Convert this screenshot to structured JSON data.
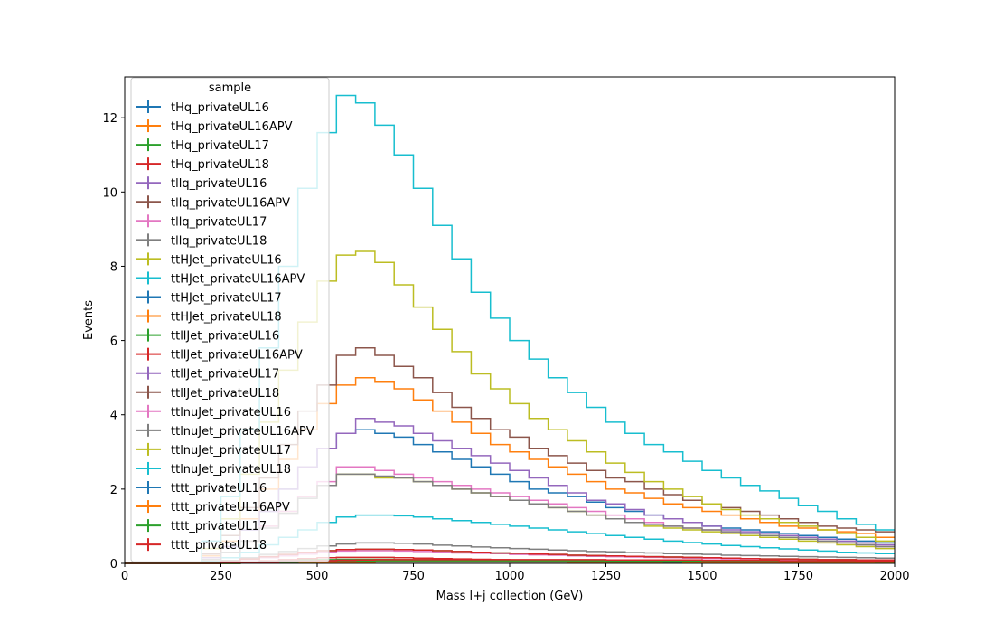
{
  "chart_data": {
    "type": "line",
    "drawstyle": "steps-mid",
    "xlabel": "Mass l+j collection (GeV)",
    "ylabel": "Events",
    "xlim": [
      0,
      2000
    ],
    "ylim": [
      0,
      13.1
    ],
    "x_ticks": [
      0,
      250,
      500,
      750,
      1000,
      1250,
      1500,
      1750,
      2000
    ],
    "y_ticks": [
      0,
      2,
      4,
      6,
      8,
      10,
      12
    ],
    "grid": false,
    "legend": {
      "title": "sample",
      "placement": "upper-left"
    },
    "x": [
      25,
      75,
      125,
      175,
      225,
      275,
      325,
      375,
      425,
      475,
      525,
      575,
      625,
      675,
      725,
      775,
      825,
      875,
      925,
      975,
      1025,
      1075,
      1125,
      1175,
      1225,
      1275,
      1325,
      1375,
      1425,
      1475,
      1525,
      1575,
      1625,
      1675,
      1725,
      1775,
      1825,
      1875,
      1925,
      1975
    ],
    "series": [
      {
        "name": "tHq_privateUL16",
        "color": "#1f77b4",
        "values": [
          0,
          0,
          0,
          0,
          0,
          0.01,
          0.02,
          0.03,
          0.04,
          0.05,
          0.06,
          0.07,
          0.07,
          0.07,
          0.07,
          0.06,
          0.06,
          0.05,
          0.05,
          0.05,
          0.04,
          0.04,
          0.04,
          0.03,
          0.03,
          0.03,
          0.03,
          0.02,
          0.02,
          0.02,
          0.02,
          0.02,
          0.02,
          0.01,
          0.01,
          0.01,
          0.01,
          0.01,
          0.01,
          0.01
        ]
      },
      {
        "name": "tHq_privateUL16APV",
        "color": "#ff7f0e",
        "values": [
          0,
          0,
          0,
          0,
          0,
          0.01,
          0.02,
          0.03,
          0.04,
          0.05,
          0.06,
          0.07,
          0.07,
          0.07,
          0.07,
          0.06,
          0.06,
          0.05,
          0.05,
          0.05,
          0.04,
          0.04,
          0.04,
          0.03,
          0.03,
          0.03,
          0.03,
          0.02,
          0.02,
          0.02,
          0.02,
          0.02,
          0.02,
          0.01,
          0.01,
          0.01,
          0.01,
          0.01,
          0.01,
          0.01
        ]
      },
      {
        "name": "tHq_privateUL17",
        "color": "#2ca02c",
        "values": [
          0,
          0,
          0,
          0,
          0,
          0.01,
          0.03,
          0.05,
          0.07,
          0.09,
          0.1,
          0.11,
          0.11,
          0.11,
          0.1,
          0.1,
          0.09,
          0.08,
          0.08,
          0.07,
          0.07,
          0.06,
          0.06,
          0.05,
          0.05,
          0.04,
          0.04,
          0.04,
          0.03,
          0.03,
          0.03,
          0.03,
          0.02,
          0.02,
          0.02,
          0.02,
          0.02,
          0.02,
          0.01,
          0.01
        ]
      },
      {
        "name": "tHq_privateUL18",
        "color": "#d62728",
        "values": [
          0,
          0,
          0,
          0,
          0,
          0.02,
          0.04,
          0.07,
          0.1,
          0.13,
          0.15,
          0.16,
          0.16,
          0.16,
          0.15,
          0.14,
          0.13,
          0.12,
          0.11,
          0.1,
          0.09,
          0.09,
          0.08,
          0.07,
          0.07,
          0.06,
          0.06,
          0.05,
          0.05,
          0.05,
          0.04,
          0.04,
          0.04,
          0.03,
          0.03,
          0.03,
          0.03,
          0.02,
          0.02,
          0.02
        ]
      },
      {
        "name": "tllq_privateUL16",
        "color": "#9467bd",
        "values": [
          0,
          0,
          0,
          0,
          0.01,
          0.02,
          0.03,
          0.05,
          0.06,
          0.07,
          0.08,
          0.09,
          0.09,
          0.09,
          0.09,
          0.08,
          0.08,
          0.08,
          0.07,
          0.07,
          0.07,
          0.06,
          0.06,
          0.06,
          0.05,
          0.05,
          0.05,
          0.05,
          0.04,
          0.04,
          0.04,
          0.04,
          0.04,
          0.03,
          0.03,
          0.03,
          0.03,
          0.03,
          0.03,
          0.02
        ]
      },
      {
        "name": "tllq_privateUL16APV",
        "color": "#8c564b",
        "values": [
          0,
          0,
          0,
          0,
          0.01,
          0.02,
          0.03,
          0.05,
          0.06,
          0.07,
          0.08,
          0.09,
          0.09,
          0.09,
          0.09,
          0.08,
          0.08,
          0.08,
          0.07,
          0.07,
          0.07,
          0.06,
          0.06,
          0.06,
          0.05,
          0.05,
          0.05,
          0.05,
          0.04,
          0.04,
          0.04,
          0.04,
          0.04,
          0.03,
          0.03,
          0.03,
          0.03,
          0.03,
          0.03,
          0.02
        ]
      },
      {
        "name": "tllq_privateUL17",
        "color": "#e377c2",
        "values": [
          0,
          0,
          0,
          0,
          0.02,
          0.05,
          0.1,
          0.15,
          0.2,
          0.25,
          0.3,
          0.33,
          0.34,
          0.34,
          0.33,
          0.32,
          0.3,
          0.28,
          0.27,
          0.26,
          0.24,
          0.23,
          0.22,
          0.2,
          0.19,
          0.18,
          0.17,
          0.16,
          0.15,
          0.14,
          0.13,
          0.12,
          0.12,
          0.11,
          0.1,
          0.1,
          0.09,
          0.09,
          0.08,
          0.08
        ]
      },
      {
        "name": "tllq_privateUL18",
        "color": "#7f7f7f",
        "values": [
          0,
          0,
          0,
          0,
          0.03,
          0.08,
          0.15,
          0.24,
          0.32,
          0.4,
          0.47,
          0.52,
          0.55,
          0.55,
          0.54,
          0.52,
          0.49,
          0.47,
          0.44,
          0.42,
          0.4,
          0.38,
          0.36,
          0.34,
          0.32,
          0.31,
          0.29,
          0.28,
          0.26,
          0.25,
          0.24,
          0.22,
          0.21,
          0.2,
          0.19,
          0.18,
          0.17,
          0.16,
          0.15,
          0.14
        ]
      },
      {
        "name": "ttHJet_privateUL16",
        "color": "#bcbd22",
        "values": [
          0,
          0,
          0,
          0,
          0.1,
          0.3,
          0.6,
          1.0,
          1.4,
          1.8,
          2.1,
          2.4,
          2.4,
          2.3,
          2.3,
          2.2,
          2.1,
          2.0,
          1.9,
          1.8,
          1.7,
          1.6,
          1.5,
          1.4,
          1.3,
          1.2,
          1.1,
          1.0,
          0.95,
          0.9,
          0.85,
          0.8,
          0.75,
          0.7,
          0.65,
          0.6,
          0.55,
          0.5,
          0.45,
          0.4
        ]
      },
      {
        "name": "ttHJet_privateUL16APV",
        "color": "#17becf",
        "values": [
          0,
          0,
          0,
          0,
          0.05,
          0.15,
          0.3,
          0.5,
          0.7,
          0.9,
          1.1,
          1.25,
          1.3,
          1.3,
          1.28,
          1.25,
          1.2,
          1.15,
          1.1,
          1.05,
          1.0,
          0.95,
          0.9,
          0.85,
          0.8,
          0.75,
          0.7,
          0.65,
          0.6,
          0.56,
          0.52,
          0.48,
          0.45,
          0.42,
          0.39,
          0.36,
          0.33,
          0.3,
          0.28,
          0.26
        ]
      },
      {
        "name": "ttHJet_privateUL17",
        "color": "#1f77b4",
        "values": [
          0,
          0,
          0,
          0,
          0.15,
          0.45,
          0.9,
          1.4,
          2.0,
          2.6,
          3.1,
          3.5,
          3.6,
          3.5,
          3.4,
          3.2,
          3.0,
          2.8,
          2.6,
          2.4,
          2.2,
          2.0,
          1.9,
          1.8,
          1.65,
          1.5,
          1.4,
          1.3,
          1.2,
          1.1,
          1.0,
          0.95,
          0.9,
          0.85,
          0.8,
          0.75,
          0.7,
          0.65,
          0.6,
          0.55
        ]
      },
      {
        "name": "ttHJet_privateUL18",
        "color": "#ff7f0e",
        "values": [
          0,
          0,
          0,
          0,
          0.2,
          0.6,
          1.2,
          2.0,
          2.8,
          3.6,
          4.3,
          4.8,
          5.0,
          4.9,
          4.7,
          4.4,
          4.1,
          3.8,
          3.5,
          3.2,
          3.0,
          2.8,
          2.6,
          2.4,
          2.2,
          2.0,
          1.9,
          1.75,
          1.6,
          1.5,
          1.4,
          1.3,
          1.2,
          1.1,
          1.0,
          0.95,
          0.9,
          0.85,
          0.8,
          0.7
        ]
      },
      {
        "name": "ttllJet_privateUL16",
        "color": "#2ca02c",
        "values": [
          0,
          0,
          0,
          0,
          0.02,
          0.06,
          0.12,
          0.18,
          0.24,
          0.3,
          0.34,
          0.37,
          0.38,
          0.38,
          0.37,
          0.36,
          0.34,
          0.32,
          0.3,
          0.28,
          0.27,
          0.25,
          0.24,
          0.22,
          0.21,
          0.2,
          0.19,
          0.18,
          0.17,
          0.16,
          0.15,
          0.14,
          0.13,
          0.12,
          0.12,
          0.11,
          0.1,
          0.1,
          0.09,
          0.09
        ]
      },
      {
        "name": "ttllJet_privateUL16APV",
        "color": "#d62728",
        "values": [
          0,
          0,
          0,
          0,
          0.02,
          0.06,
          0.12,
          0.18,
          0.24,
          0.3,
          0.34,
          0.37,
          0.38,
          0.38,
          0.37,
          0.36,
          0.34,
          0.32,
          0.3,
          0.28,
          0.27,
          0.25,
          0.24,
          0.22,
          0.21,
          0.2,
          0.19,
          0.18,
          0.17,
          0.16,
          0.15,
          0.14,
          0.13,
          0.12,
          0.12,
          0.11,
          0.1,
          0.1,
          0.09,
          0.09
        ]
      },
      {
        "name": "ttllJet_privateUL17",
        "color": "#9467bd",
        "values": [
          0,
          0,
          0,
          0,
          0.15,
          0.45,
          0.9,
          1.4,
          2.0,
          2.6,
          3.1,
          3.5,
          3.9,
          3.8,
          3.7,
          3.5,
          3.3,
          3.1,
          2.9,
          2.7,
          2.5,
          2.3,
          2.1,
          1.9,
          1.7,
          1.6,
          1.45,
          1.3,
          1.2,
          1.1,
          1.0,
          0.9,
          0.85,
          0.8,
          0.75,
          0.7,
          0.65,
          0.6,
          0.55,
          0.5
        ]
      },
      {
        "name": "ttllJet_privateUL18",
        "color": "#8c564b",
        "values": [
          0,
          0,
          0,
          0,
          0.25,
          0.75,
          1.5,
          2.3,
          3.2,
          4.1,
          4.8,
          5.6,
          5.8,
          5.6,
          5.3,
          5.0,
          4.6,
          4.2,
          3.9,
          3.6,
          3.4,
          3.1,
          2.9,
          2.7,
          2.5,
          2.3,
          2.2,
          2.0,
          1.85,
          1.7,
          1.6,
          1.5,
          1.4,
          1.3,
          1.2,
          1.1,
          1.0,
          0.95,
          0.9,
          0.85
        ]
      },
      {
        "name": "ttlnuJet_privateUL16",
        "color": "#e377c2",
        "values": [
          0,
          0,
          0,
          0,
          0.1,
          0.3,
          0.6,
          1.0,
          1.4,
          1.8,
          2.2,
          2.6,
          2.6,
          2.5,
          2.4,
          2.3,
          2.2,
          2.1,
          2.0,
          1.9,
          1.8,
          1.7,
          1.6,
          1.5,
          1.4,
          1.3,
          1.2,
          1.1,
          1.0,
          0.95,
          0.9,
          0.85,
          0.8,
          0.75,
          0.7,
          0.65,
          0.6,
          0.55,
          0.5,
          0.45
        ]
      },
      {
        "name": "ttlnuJet_privateUL16APV",
        "color": "#7f7f7f",
        "values": [
          0,
          0,
          0,
          0,
          0.1,
          0.3,
          0.6,
          0.95,
          1.35,
          1.75,
          2.1,
          2.4,
          2.4,
          2.35,
          2.3,
          2.2,
          2.1,
          2.0,
          1.9,
          1.8,
          1.7,
          1.6,
          1.5,
          1.4,
          1.3,
          1.2,
          1.1,
          1.05,
          1.0,
          0.95,
          0.9,
          0.85,
          0.8,
          0.75,
          0.7,
          0.65,
          0.6,
          0.55,
          0.5,
          0.45
        ]
      },
      {
        "name": "ttlnuJet_privateUL17",
        "color": "#bcbd22",
        "values": [
          0,
          0,
          0,
          0,
          0.4,
          1.2,
          2.4,
          3.8,
          5.2,
          6.5,
          7.6,
          8.3,
          8.4,
          8.1,
          7.5,
          6.9,
          6.3,
          5.7,
          5.1,
          4.7,
          4.3,
          3.9,
          3.6,
          3.3,
          3.0,
          2.7,
          2.45,
          2.2,
          2.0,
          1.8,
          1.6,
          1.45,
          1.3,
          1.2,
          1.1,
          1.0,
          0.9,
          0.8,
          0.7,
          0.6
        ]
      },
      {
        "name": "ttlnuJet_privateUL18",
        "color": "#17becf",
        "values": [
          0,
          0,
          0,
          0,
          0.6,
          1.8,
          3.6,
          5.8,
          8.0,
          10.1,
          11.6,
          12.6,
          12.4,
          11.8,
          11.0,
          10.1,
          9.1,
          8.2,
          7.3,
          6.6,
          6.0,
          5.5,
          5.0,
          4.6,
          4.2,
          3.8,
          3.5,
          3.2,
          3.0,
          2.75,
          2.5,
          2.3,
          2.1,
          1.95,
          1.75,
          1.55,
          1.4,
          1.2,
          1.05,
          0.9
        ]
      },
      {
        "name": "tttt_privateUL16",
        "color": "#1f77b4",
        "values": [
          0,
          0,
          0,
          0,
          0,
          0,
          0.01,
          0.01,
          0.02,
          0.02,
          0.03,
          0.03,
          0.03,
          0.04,
          0.04,
          0.04,
          0.04,
          0.04,
          0.04,
          0.04,
          0.04,
          0.04,
          0.04,
          0.04,
          0.04,
          0.04,
          0.04,
          0.04,
          0.04,
          0.03,
          0.03,
          0.03,
          0.03,
          0.03,
          0.03,
          0.03,
          0.03,
          0.03,
          0.03,
          0.03
        ]
      },
      {
        "name": "tttt_privateUL16APV",
        "color": "#ff7f0e",
        "values": [
          0,
          0,
          0,
          0,
          0,
          0,
          0.01,
          0.01,
          0.02,
          0.02,
          0.03,
          0.03,
          0.03,
          0.04,
          0.04,
          0.04,
          0.04,
          0.04,
          0.04,
          0.04,
          0.04,
          0.04,
          0.04,
          0.04,
          0.04,
          0.04,
          0.04,
          0.04,
          0.04,
          0.03,
          0.03,
          0.03,
          0.03,
          0.03,
          0.03,
          0.03,
          0.03,
          0.03,
          0.03,
          0.03
        ]
      },
      {
        "name": "tttt_privateUL17",
        "color": "#2ca02c",
        "values": [
          0,
          0,
          0,
          0,
          0,
          0,
          0.01,
          0.02,
          0.03,
          0.04,
          0.05,
          0.06,
          0.06,
          0.07,
          0.07,
          0.07,
          0.07,
          0.07,
          0.07,
          0.07,
          0.07,
          0.07,
          0.07,
          0.07,
          0.07,
          0.06,
          0.06,
          0.06,
          0.06,
          0.06,
          0.06,
          0.06,
          0.05,
          0.05,
          0.05,
          0.05,
          0.05,
          0.05,
          0.05,
          0.04
        ]
      },
      {
        "name": "tttt_privateUL18",
        "color": "#d62728",
        "values": [
          0,
          0,
          0,
          0,
          0,
          0.01,
          0.02,
          0.03,
          0.04,
          0.05,
          0.07,
          0.08,
          0.09,
          0.1,
          0.1,
          0.1,
          0.1,
          0.1,
          0.1,
          0.1,
          0.1,
          0.1,
          0.1,
          0.1,
          0.1,
          0.09,
          0.09,
          0.09,
          0.09,
          0.09,
          0.08,
          0.08,
          0.08,
          0.08,
          0.07,
          0.07,
          0.07,
          0.07,
          0.06,
          0.06
        ]
      }
    ]
  }
}
